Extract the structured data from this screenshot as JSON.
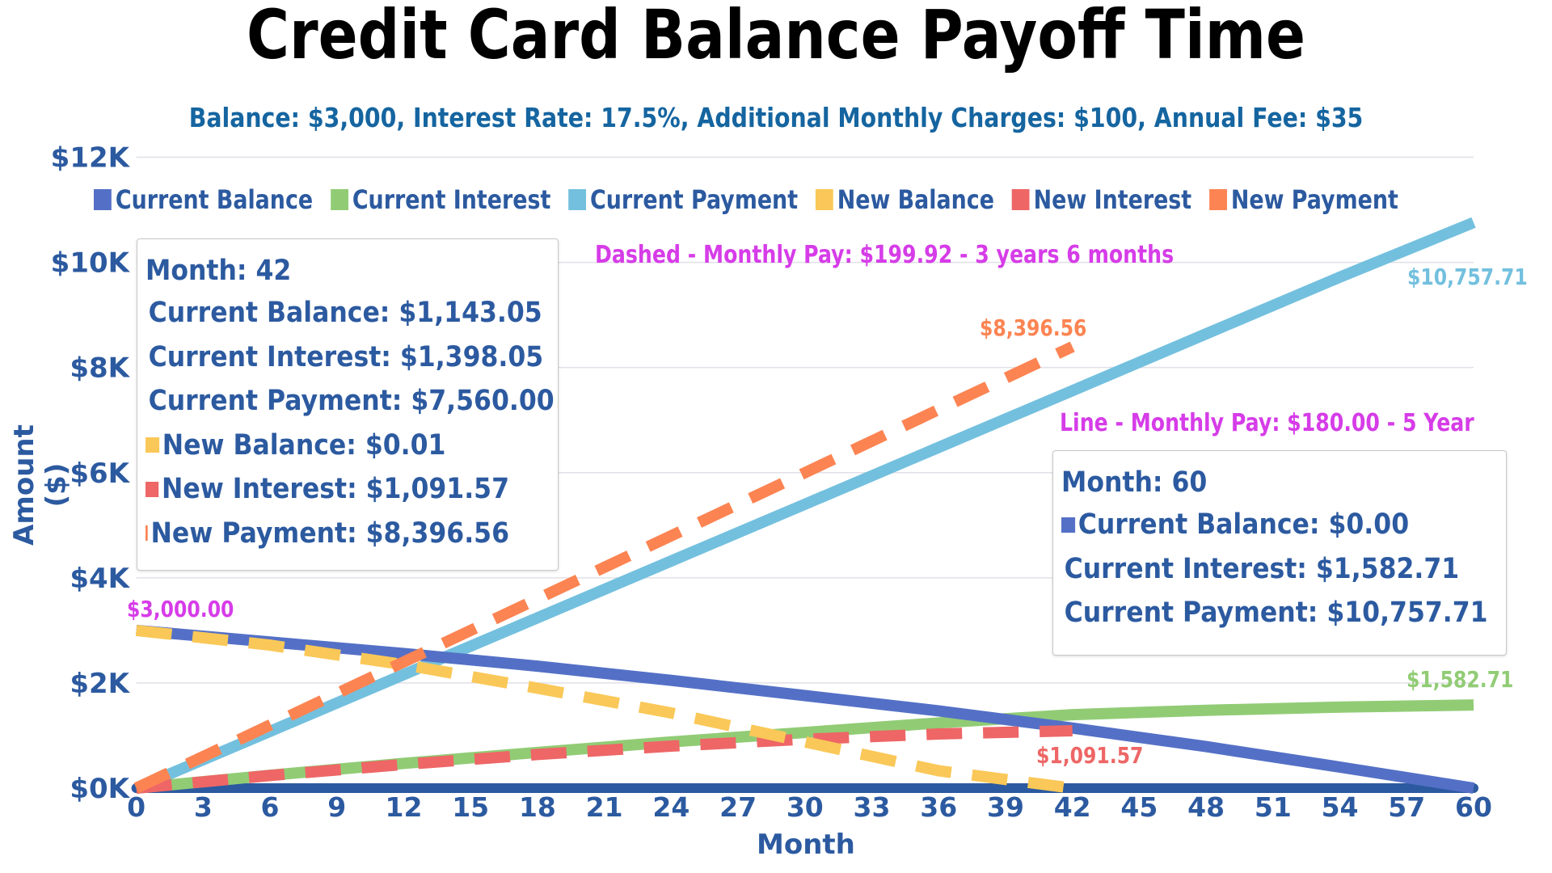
{
  "chart": {
    "title": "Credit Card Balance Payoff Time",
    "subtitle": "Balance: $3,000, Interest Rate: 17.5%, Additional Monthly Charges: $100, Annual Fee: $35",
    "x_axis_label": "Month",
    "y_axis_label": "Amount ($)",
    "y_ticks": [
      "$0K",
      "$2K",
      "$4K",
      "$6K",
      "$8K",
      "$10K",
      "$12K"
    ],
    "x_ticks": [
      "0",
      "3",
      "6",
      "9",
      "12",
      "15",
      "18",
      "21",
      "24",
      "27",
      "30",
      "33",
      "36",
      "39",
      "42",
      "45",
      "48",
      "51",
      "54",
      "57",
      "60"
    ]
  },
  "legend": [
    {
      "label": "Current Balance",
      "color": "#5470c6"
    },
    {
      "label": "Current Interest",
      "color": "#91cc75"
    },
    {
      "label": "Current Payment",
      "color": "#73c0de"
    },
    {
      "label": "New Balance",
      "color": "#fac858"
    },
    {
      "label": "New Interest",
      "color": "#ee6666"
    },
    {
      "label": "New Payment",
      "color": "#fc8452"
    }
  ],
  "annotations": {
    "dashed_note": "Dashed - Monthly Pay: $199.92  -  3 years 6 months",
    "line_note": "Line - Monthly Pay: $180.00 -  5 Year",
    "start_label": "$3,000.00",
    "new_payment_end": "$8,396.56",
    "current_payment_end": "$10,757.71",
    "current_interest_end": "$1,582.71",
    "new_interest_end": "$1,091.57"
  },
  "tooltip_42": {
    "header": "Month: 42",
    "rows": [
      {
        "label": "Current Balance: $1,143.05",
        "color": "#5470c6"
      },
      {
        "label": "Current Interest: $1,398.05",
        "color": "#91cc75"
      },
      {
        "label": "Current Payment: $7,560.00",
        "color": "#73c0de"
      },
      {
        "label": "New Balance: $0.01",
        "color": "#fac858"
      },
      {
        "label": "New Interest: $1,091.57",
        "color": "#ee6666"
      },
      {
        "label": "New Payment: $8,396.56",
        "color": "#fc8452"
      }
    ]
  },
  "tooltip_60": {
    "header": "Month: 60",
    "rows": [
      {
        "label": "Current Balance: $0.00",
        "color": "#5470c6"
      },
      {
        "label": "Current Interest: $1,582.71",
        "color": "#91cc75"
      },
      {
        "label": "Current Payment: $10,757.71",
        "color": "#73c0de"
      }
    ]
  },
  "chart_data": {
    "type": "line",
    "title": "Credit Card Balance Payoff Time",
    "subtitle": "Balance: $3,000, Interest Rate: 17.5%, Additional Monthly Charges: $100, Annual Fee: $35",
    "xlabel": "Month",
    "ylabel": "Amount ($)",
    "ylim": [
      0,
      12000
    ],
    "xlim": [
      0,
      60
    ],
    "grid": true,
    "legend_position": "top",
    "x": [
      0,
      6,
      12,
      18,
      24,
      30,
      36,
      42,
      48,
      54,
      60
    ],
    "series": [
      {
        "name": "Current Balance",
        "style": "solid",
        "values": [
          3000,
          2780,
          2560,
          2320,
          2050,
          1760,
          1470,
          1143.05,
          790,
          400,
          0
        ]
      },
      {
        "name": "Current Interest",
        "style": "solid",
        "values": [
          0,
          245,
          470,
          680,
          880,
          1060,
          1240,
          1398.05,
          1480,
          1540,
          1582.71
        ]
      },
      {
        "name": "Current Payment",
        "style": "solid",
        "values": [
          0,
          1080,
          2160,
          3240,
          4320,
          5400,
          6480,
          7560,
          8640,
          9720,
          10757.71
        ]
      },
      {
        "name": "New Balance",
        "style": "dashed",
        "values": [
          3000,
          2720,
          2350,
          1900,
          1430,
          880,
          330,
          0.01,
          null,
          null,
          null
        ]
      },
      {
        "name": "New Interest",
        "style": "dashed",
        "values": [
          0,
          240,
          450,
          640,
          800,
          930,
          1030,
          1091.57,
          null,
          null,
          null
        ]
      },
      {
        "name": "New Payment",
        "style": "dashed",
        "values": [
          0,
          1200,
          2400,
          3600,
          4800,
          6000,
          7200,
          8396.56,
          null,
          null,
          null
        ]
      }
    ],
    "annotations": [
      "Dashed - Monthly Pay: $199.92  -  3 years 6 months",
      "Line - Monthly Pay: $180.00 -  5 Year",
      "$3,000.00",
      "$8,396.56",
      "$10,757.71",
      "$1,582.71",
      "$1,091.57"
    ]
  }
}
